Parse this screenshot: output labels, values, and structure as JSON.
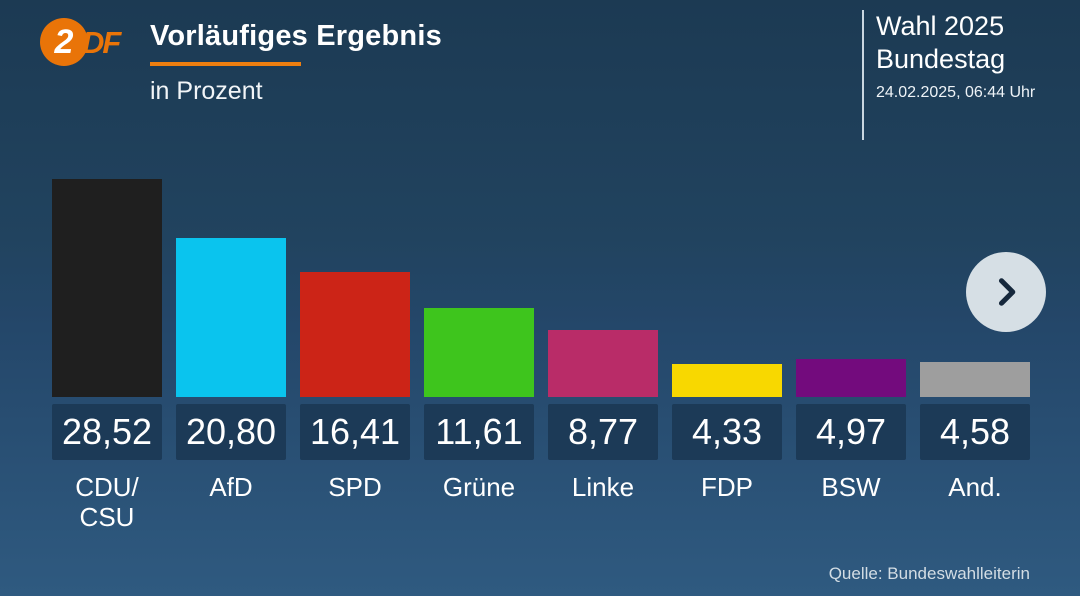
{
  "header": {
    "logo": {
      "circle_text": "2",
      "side_text": "DF"
    },
    "title": "Vorläufiges Ergebnis",
    "subtitle": "in Prozent"
  },
  "info_panel": {
    "line1": "Wahl 2025",
    "line2": "Bundestag",
    "timestamp": "24.02.2025, 06:44 Uhr"
  },
  "carousel": {
    "next_icon": "chevron-right"
  },
  "footer": {
    "source": "Quelle: Bundeswahlleiterin"
  },
  "colors": {
    "background_top": "#1c3a53",
    "background_bottom": "#2f5a80",
    "accent_orange": "#ee7f10",
    "logo_orange": "#e97408",
    "value_badge": "#1c3a57",
    "next_button": "#d6dfe5",
    "chevron": "#16283c"
  },
  "chart_data": {
    "type": "bar",
    "title": "Vorläufiges Ergebnis",
    "subtitle": "in Prozent",
    "categories": [
      "CDU/CSU",
      "AfD",
      "SPD",
      "Grüne",
      "Linke",
      "FDP",
      "BSW",
      "And."
    ],
    "display_labels": [
      "CDU/\nCSU",
      "AfD",
      "SPD",
      "Grüne",
      "Linke",
      "FDP",
      "BSW",
      "And."
    ],
    "values": [
      28.52,
      20.8,
      16.41,
      11.61,
      8.77,
      4.33,
      4.97,
      4.58
    ],
    "value_labels": [
      "28,52",
      "20,80",
      "16,41",
      "11,61",
      "8,77",
      "4,33",
      "4,97",
      "4,58"
    ],
    "bar_colors": [
      "#1f1f1f",
      "#0ac4ee",
      "#cc2417",
      "#3ec51d",
      "#b92c68",
      "#f8d800",
      "#730b7d",
      "#9e9e9e"
    ],
    "unit": "%",
    "ylim": [
      0,
      28.8
    ],
    "grid": false,
    "legend": "none",
    "source": "Quelle: Bundeswahlleiterin"
  }
}
